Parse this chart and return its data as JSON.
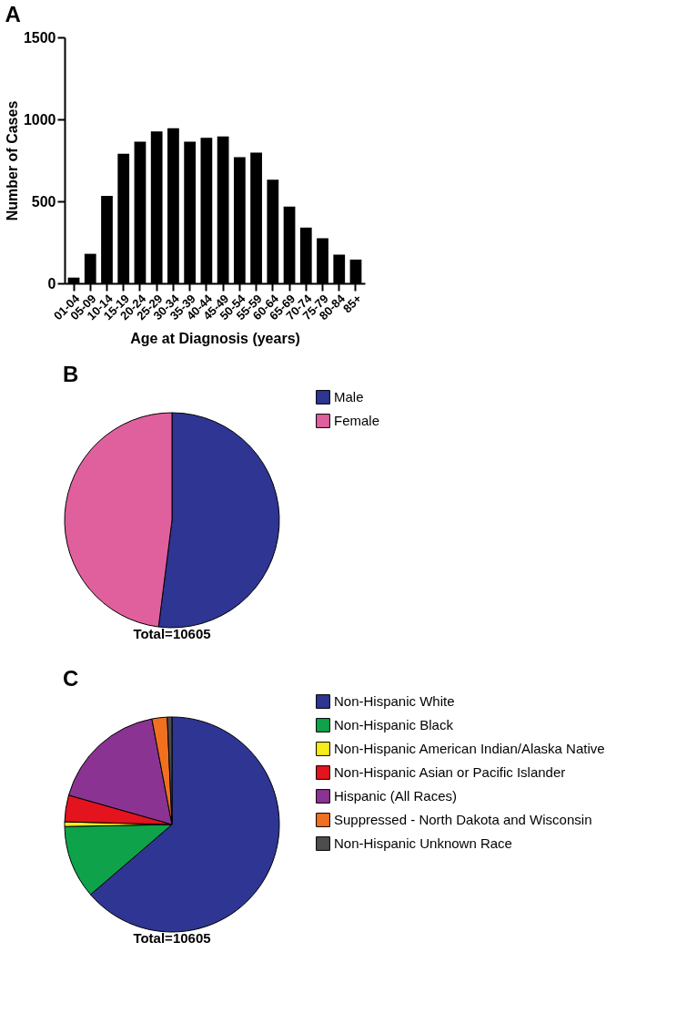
{
  "chart_data": [
    {
      "type": "bar",
      "title": "A",
      "xlabel": "Age at Diagnosis (years)",
      "ylabel": "Number of Cases",
      "categories": [
        "01-04",
        "05-09",
        "10-14",
        "15-19",
        "20-24",
        "25-29",
        "30-34",
        "35-39",
        "40-44",
        "45-49",
        "50-54",
        "55-59",
        "60-64",
        "65-69",
        "70-74",
        "75-79",
        "80-84",
        "85+"
      ],
      "values": [
        35,
        180,
        533,
        790,
        864,
        926,
        946,
        864,
        887,
        896,
        770,
        797,
        632,
        468,
        340,
        275,
        175,
        145
      ],
      "color": "#000000",
      "ylim": [
        0,
        1500
      ],
      "yticks": [
        0,
        500,
        1000,
        1500
      ],
      "grid": false
    },
    {
      "type": "pie",
      "title": "B",
      "categories": [
        "Male",
        " Female"
      ],
      "values": [
        52,
        48
      ],
      "colors": [
        "#2e3592",
        "#e0609e"
      ],
      "legend": "right",
      "annotations": [
        "Total=10605"
      ]
    },
    {
      "type": "pie",
      "title": "C",
      "categories": [
        "Non-Hispanic White",
        "Non-Hispanic Black",
        "Non-Hispanic American Indian/Alaska Native",
        "Non-Hispanic Asian or Pacific Islander",
        "Hispanic (All Races)",
        "Suppressed - North Dakota and Wisconsin",
        "Non-Hispanic Unknown Race"
      ],
      "values": [
        63.7,
        11.0,
        0.7,
        4.0,
        17.6,
        2.3,
        0.7
      ],
      "colors": [
        "#2e3592",
        "#0ea34a",
        "#f5ec1a",
        "#e3141e",
        "#8b3393",
        "#f07020",
        "#4d4d4d"
      ],
      "legend": "right",
      "annotations": [
        "Total=10605"
      ]
    }
  ]
}
